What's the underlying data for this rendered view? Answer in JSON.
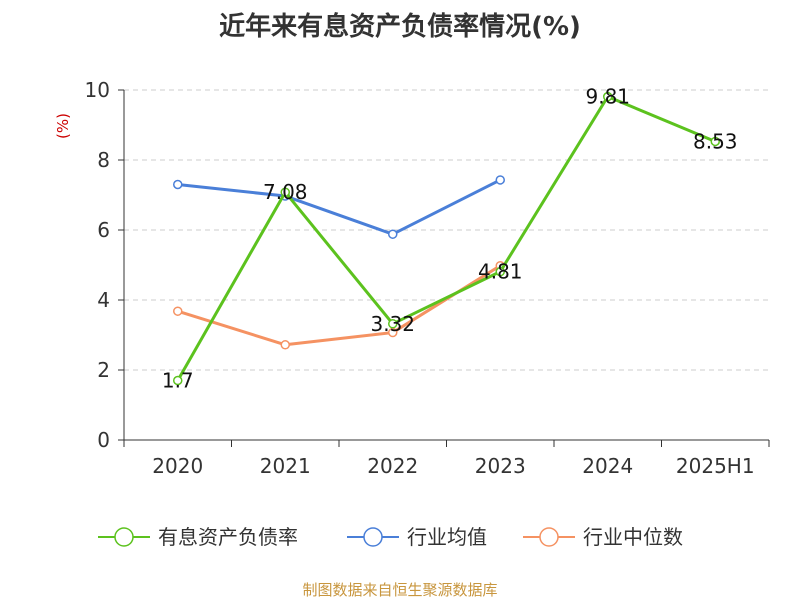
{
  "chart_data": {
    "type": "line",
    "title": "近年来有息资产负债率情况(%)",
    "ylabel": "(%)",
    "categories": [
      "2020",
      "2021",
      "2022",
      "2023",
      "2024",
      "2025H1"
    ],
    "ylim": [
      0,
      10
    ],
    "yticks": [
      0,
      2,
      4,
      6,
      8,
      10
    ],
    "grid": true,
    "legend_position": "bottom",
    "series": [
      {
        "name": "有息资产负债率",
        "color": "#5cc21e",
        "values": [
          1.7,
          7.08,
          3.32,
          4.81,
          9.81,
          8.53
        ],
        "labels": [
          "1.7",
          "7.08",
          "3.32",
          "4.81",
          "9.81",
          "8.53"
        ]
      },
      {
        "name": "行业均值",
        "color": "#4a7fd8",
        "values": [
          7.3,
          6.97,
          5.88,
          7.43,
          null,
          null
        ]
      },
      {
        "name": "行业中位数",
        "color": "#f59262",
        "values": [
          3.68,
          2.72,
          3.07,
          4.98,
          null,
          null
        ]
      }
    ]
  },
  "source": "制图数据来自恒生聚源数据库",
  "colors": {
    "axis": "#333333",
    "grid": "#cccccc",
    "ylabel": "#cc0000",
    "source": "#c8963e"
  }
}
